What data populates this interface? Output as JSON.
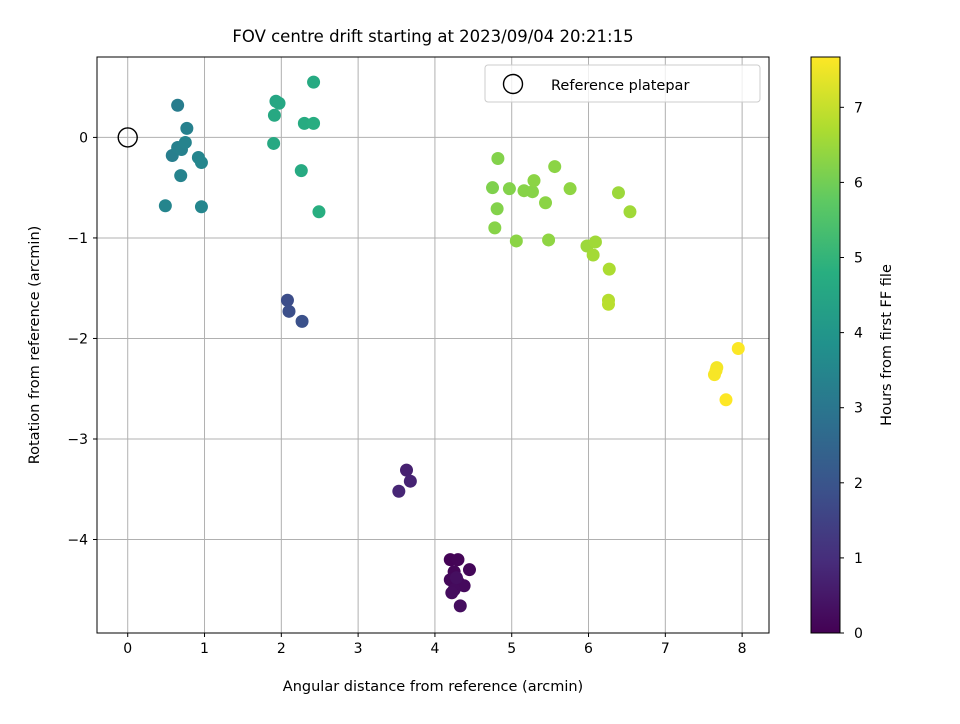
{
  "chart_data": {
    "type": "scatter",
    "title": "FOV centre drift starting at 2023/09/04 20:21:15",
    "xlabel": "Angular distance from reference (arcmin)",
    "ylabel": "Rotation from reference (arcmin)",
    "xlim": [
      -0.4,
      8.35
    ],
    "ylim": [
      -4.93,
      0.8
    ],
    "xticks": [
      0,
      1,
      2,
      3,
      4,
      5,
      6,
      7,
      8
    ],
    "yticks": [
      0,
      -1,
      -2,
      -3,
      -4
    ],
    "grid": true,
    "legend": {
      "label": "Reference platepar",
      "placement": "top-right"
    },
    "reference_point": {
      "x": 0,
      "y": 0
    },
    "colorbar": {
      "label": "Hours from first FF file",
      "range": [
        0,
        7.67
      ],
      "ticks": [
        0,
        1,
        2,
        3,
        4,
        5,
        6,
        7
      ],
      "colormap": "viridis"
    },
    "points": [
      {
        "x": 4.2,
        "y": -4.2,
        "c": 0.05
      },
      {
        "x": 4.3,
        "y": -4.2,
        "c": 0.08
      },
      {
        "x": 4.25,
        "y": -4.32,
        "c": 0.1
      },
      {
        "x": 4.45,
        "y": -4.3,
        "c": 0.12
      },
      {
        "x": 4.2,
        "y": -4.4,
        "c": 0.15
      },
      {
        "x": 4.3,
        "y": -4.42,
        "c": 0.18
      },
      {
        "x": 4.38,
        "y": -4.46,
        "c": 0.2
      },
      {
        "x": 4.25,
        "y": -4.5,
        "c": 0.22
      },
      {
        "x": 4.22,
        "y": -4.53,
        "c": 0.25
      },
      {
        "x": 4.33,
        "y": -4.66,
        "c": 0.28
      },
      {
        "x": 4.28,
        "y": -4.38,
        "c": 0.3
      },
      {
        "x": 3.63,
        "y": -3.31,
        "c": 0.7
      },
      {
        "x": 3.68,
        "y": -3.42,
        "c": 0.75
      },
      {
        "x": 3.53,
        "y": -3.52,
        "c": 0.8
      },
      {
        "x": 2.08,
        "y": -1.62,
        "c": 1.8
      },
      {
        "x": 2.1,
        "y": -1.73,
        "c": 1.85
      },
      {
        "x": 2.27,
        "y": -1.83,
        "c": 1.9
      },
      {
        "x": 0.65,
        "y": 0.32,
        "c": 3.2
      },
      {
        "x": 0.77,
        "y": 0.09,
        "c": 3.3
      },
      {
        "x": 0.58,
        "y": -0.18,
        "c": 3.25
      },
      {
        "x": 0.65,
        "y": -0.1,
        "c": 3.3
      },
      {
        "x": 0.7,
        "y": -0.12,
        "c": 3.35
      },
      {
        "x": 0.75,
        "y": -0.05,
        "c": 3.4
      },
      {
        "x": 0.92,
        "y": -0.2,
        "c": 3.45
      },
      {
        "x": 0.96,
        "y": -0.25,
        "c": 3.5
      },
      {
        "x": 0.69,
        "y": -0.38,
        "c": 3.4
      },
      {
        "x": 0.49,
        "y": -0.68,
        "c": 3.45
      },
      {
        "x": 0.96,
        "y": -0.69,
        "c": 3.5
      },
      {
        "x": 1.93,
        "y": 0.36,
        "c": 4.5
      },
      {
        "x": 1.97,
        "y": 0.34,
        "c": 4.55
      },
      {
        "x": 1.91,
        "y": 0.22,
        "c": 4.6
      },
      {
        "x": 2.42,
        "y": 0.55,
        "c": 4.65
      },
      {
        "x": 2.3,
        "y": 0.14,
        "c": 4.7
      },
      {
        "x": 2.42,
        "y": 0.14,
        "c": 4.75
      },
      {
        "x": 1.9,
        "y": -0.06,
        "c": 4.6
      },
      {
        "x": 2.26,
        "y": -0.33,
        "c": 4.65
      },
      {
        "x": 2.49,
        "y": -0.74,
        "c": 4.8
      },
      {
        "x": 4.82,
        "y": -0.21,
        "c": 6.2
      },
      {
        "x": 4.75,
        "y": -0.5,
        "c": 6.15
      },
      {
        "x": 4.97,
        "y": -0.51,
        "c": 6.2
      },
      {
        "x": 5.16,
        "y": -0.53,
        "c": 6.25
      },
      {
        "x": 5.27,
        "y": -0.54,
        "c": 6.25
      },
      {
        "x": 5.29,
        "y": -0.43,
        "c": 6.3
      },
      {
        "x": 5.56,
        "y": -0.29,
        "c": 6.3
      },
      {
        "x": 5.76,
        "y": -0.51,
        "c": 6.35
      },
      {
        "x": 4.81,
        "y": -0.71,
        "c": 6.2
      },
      {
        "x": 5.44,
        "y": -0.65,
        "c": 6.3
      },
      {
        "x": 4.78,
        "y": -0.9,
        "c": 6.25
      },
      {
        "x": 5.06,
        "y": -1.03,
        "c": 6.3
      },
      {
        "x": 5.48,
        "y": -1.02,
        "c": 6.35
      },
      {
        "x": 5.98,
        "y": -1.08,
        "c": 6.5
      },
      {
        "x": 6.09,
        "y": -1.04,
        "c": 6.55
      },
      {
        "x": 6.06,
        "y": -1.17,
        "c": 6.6
      },
      {
        "x": 6.39,
        "y": -0.55,
        "c": 6.5
      },
      {
        "x": 6.54,
        "y": -0.74,
        "c": 6.55
      },
      {
        "x": 6.27,
        "y": -1.31,
        "c": 6.7
      },
      {
        "x": 6.26,
        "y": -1.62,
        "c": 6.8
      },
      {
        "x": 6.26,
        "y": -1.66,
        "c": 6.85
      },
      {
        "x": 7.67,
        "y": -2.29,
        "c": 7.55
      },
      {
        "x": 7.66,
        "y": -2.32,
        "c": 7.58
      },
      {
        "x": 7.64,
        "y": -2.36,
        "c": 7.6
      },
      {
        "x": 7.95,
        "y": -2.1,
        "c": 7.65
      },
      {
        "x": 7.79,
        "y": -2.61,
        "c": 7.67
      }
    ]
  }
}
